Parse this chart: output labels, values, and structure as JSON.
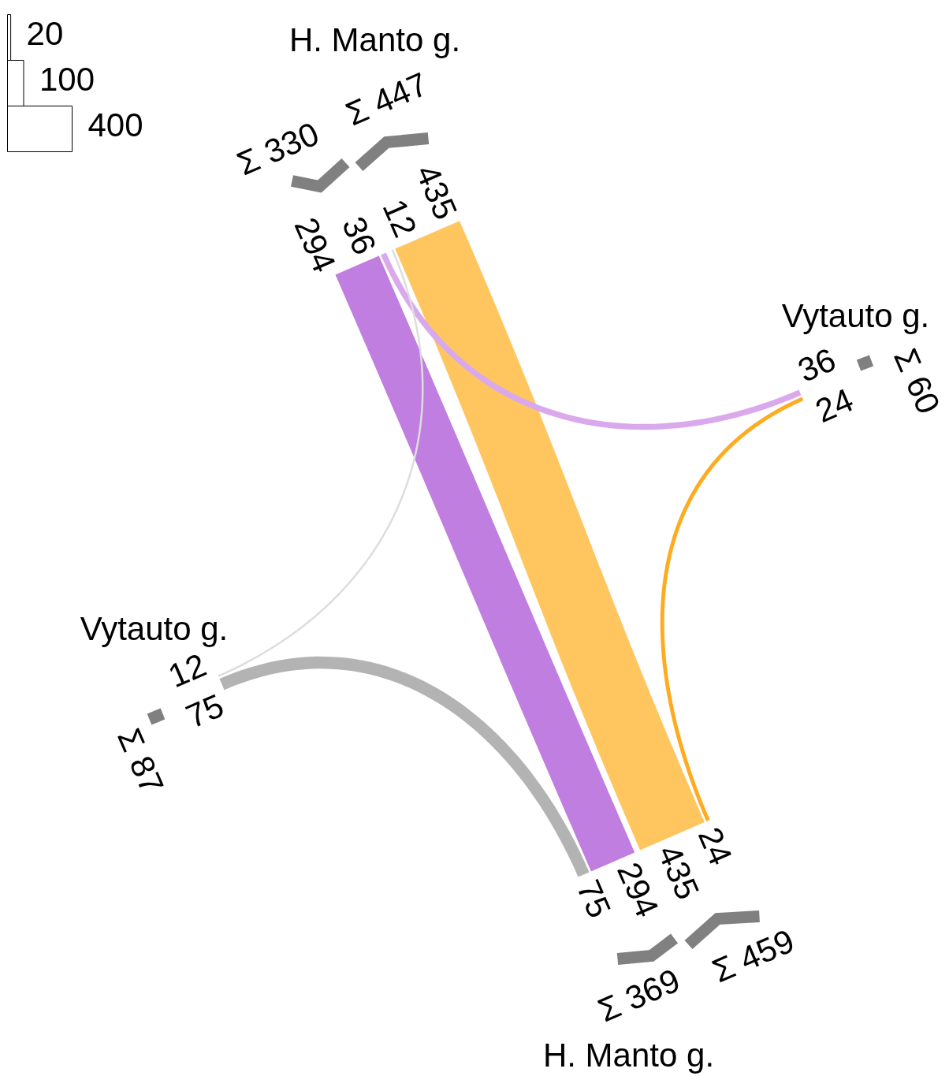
{
  "chart_data": [
    {
      "type": "other",
      "categories": [
        "H. Manto g.",
        "Vytauto g.",
        "H. Manto g.",
        "Vytauto g."
      ],
      "series": [
        {
          "values": [
            435,
            null,
            435,
            null
          ],
          "color": "#ffc65f"
        },
        {
          "values": [
            null,
            24,
            24,
            null
          ],
          "color": "#ffab1f"
        },
        {
          "values": [
            294,
            null,
            294,
            null
          ],
          "color": "#c07ee0"
        },
        {
          "values": [
            36,
            36,
            null,
            null
          ],
          "color": "#d9a9ec"
        },
        {
          "values": [
            12,
            null,
            null,
            12
          ],
          "color": "#dddddd"
        },
        {
          "values": [
            null,
            null,
            75,
            75
          ],
          "color": "#b3b3b3"
        }
      ],
      "annotations": [
        "Σ 330",
        "Σ 447",
        "Σ 60",
        "Σ 459",
        "Σ 369",
        "Σ 87"
      ],
      "data_labels": true
    },
    {
      "type": "bar",
      "orientation": "horizontal",
      "categories": [
        null,
        null,
        null
      ],
      "values": [
        20,
        100,
        400
      ],
      "color": "#ffffff",
      "data_labels": true
    }
  ]
}
